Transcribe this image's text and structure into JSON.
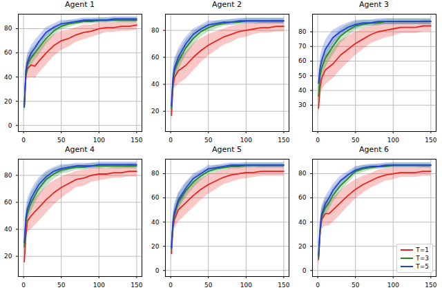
{
  "chart_data": [
    {
      "type": "line",
      "title": "Agent 1",
      "x": [
        1,
        3,
        5,
        10,
        15,
        20,
        30,
        40,
        50,
        60,
        70,
        80,
        90,
        100,
        110,
        120,
        130,
        140,
        150
      ],
      "xlim": [
        -7,
        157
      ],
      "xticks": [
        0,
        50,
        100,
        150
      ],
      "ylim": [
        -5,
        92
      ],
      "yticks": [
        0,
        20,
        40,
        60,
        80
      ],
      "grid": true,
      "series": [
        {
          "color": "#e8221c",
          "values": [
            17,
            40,
            47,
            50,
            49,
            53,
            60,
            66,
            70,
            72,
            75,
            77,
            78,
            80,
            81,
            81,
            82,
            82,
            83
          ],
          "error": [
            6,
            8,
            8,
            10,
            10,
            10,
            10,
            9,
            8,
            7,
            6,
            6,
            5,
            5,
            4,
            4,
            4,
            4,
            4
          ]
        },
        {
          "color": "#1e8c1e",
          "values": [
            16,
            42,
            50,
            56,
            60,
            64,
            72,
            78,
            82,
            84,
            85,
            86,
            86,
            87,
            87,
            87,
            87,
            87,
            87
          ],
          "error": [
            6,
            7,
            7,
            7,
            6,
            6,
            5,
            4,
            3,
            3,
            2,
            2,
            2,
            2,
            2,
            2,
            2,
            2,
            2
          ]
        },
        {
          "color": "#1f3fe0",
          "values": [
            15,
            45,
            52,
            60,
            64,
            69,
            77,
            81,
            84,
            85,
            86,
            87,
            87,
            87,
            87,
            88,
            88,
            88,
            88
          ],
          "error": [
            6,
            7,
            7,
            6,
            6,
            5,
            4,
            3,
            3,
            2,
            2,
            2,
            2,
            2,
            2,
            2,
            2,
            2,
            2
          ]
        }
      ]
    },
    {
      "type": "line",
      "title": "Agent 2",
      "x": [
        1,
        3,
        5,
        10,
        15,
        20,
        30,
        40,
        50,
        60,
        70,
        80,
        90,
        100,
        110,
        120,
        130,
        140,
        150
      ],
      "xlim": [
        -7,
        157
      ],
      "xticks": [
        0,
        50,
        100,
        150
      ],
      "ylim": [
        5,
        92
      ],
      "yticks": [
        20,
        40,
        60,
        80
      ],
      "grid": true,
      "series": [
        {
          "color": "#e8221c",
          "values": [
            17,
            38,
            45,
            50,
            52,
            54,
            60,
            65,
            69,
            72,
            75,
            77,
            79,
            80,
            81,
            82,
            82,
            83,
            83
          ],
          "error": [
            6,
            8,
            8,
            10,
            10,
            10,
            10,
            9,
            8,
            7,
            6,
            6,
            5,
            5,
            4,
            4,
            4,
            4,
            4
          ]
        },
        {
          "color": "#1e8c1e",
          "values": [
            22,
            42,
            50,
            57,
            62,
            67,
            74,
            79,
            82,
            84,
            85,
            86,
            86,
            87,
            87,
            87,
            87,
            87,
            87
          ],
          "error": [
            6,
            7,
            7,
            7,
            6,
            6,
            5,
            4,
            3,
            3,
            2,
            2,
            2,
            2,
            2,
            2,
            2,
            2,
            2
          ]
        },
        {
          "color": "#1f3fe0",
          "values": [
            24,
            44,
            52,
            60,
            65,
            70,
            77,
            81,
            84,
            85,
            86,
            86,
            87,
            87,
            87,
            87,
            87,
            87,
            87
          ],
          "error": [
            6,
            7,
            7,
            6,
            6,
            5,
            4,
            3,
            3,
            2,
            2,
            2,
            2,
            2,
            2,
            2,
            2,
            2,
            2
          ]
        }
      ]
    },
    {
      "type": "line",
      "title": "Agent 3",
      "x": [
        1,
        3,
        5,
        10,
        15,
        20,
        30,
        40,
        50,
        60,
        70,
        80,
        90,
        100,
        110,
        120,
        130,
        140,
        150
      ],
      "xlim": [
        -7,
        157
      ],
      "xticks": [
        0,
        50,
        100,
        150
      ],
      "ylim": [
        12,
        92
      ],
      "yticks": [
        30,
        40,
        50,
        60,
        70,
        80
      ],
      "grid": true,
      "series": [
        {
          "color": "#e8221c",
          "values": [
            28,
            42,
            48,
            54,
            56,
            58,
            64,
            68,
            72,
            75,
            78,
            80,
            81,
            82,
            83,
            83,
            83,
            84,
            84
          ],
          "error": [
            6,
            8,
            8,
            10,
            10,
            10,
            10,
            9,
            8,
            7,
            6,
            6,
            5,
            5,
            4,
            4,
            4,
            4,
            4
          ]
        },
        {
          "color": "#1e8c1e",
          "values": [
            36,
            50,
            55,
            62,
            66,
            70,
            77,
            81,
            84,
            85,
            86,
            86,
            87,
            87,
            87,
            87,
            87,
            87,
            87
          ],
          "error": [
            6,
            7,
            7,
            7,
            6,
            6,
            5,
            4,
            3,
            3,
            2,
            2,
            2,
            2,
            2,
            2,
            2,
            2,
            2
          ]
        },
        {
          "color": "#1f3fe0",
          "values": [
            45,
            55,
            60,
            68,
            72,
            76,
            80,
            83,
            85,
            86,
            86,
            87,
            87,
            87,
            87,
            87,
            87,
            87,
            87
          ],
          "error": [
            6,
            7,
            7,
            6,
            6,
            5,
            4,
            3,
            3,
            2,
            2,
            2,
            2,
            2,
            2,
            2,
            2,
            2,
            2
          ]
        }
      ]
    },
    {
      "type": "line",
      "title": "Agent 4",
      "x": [
        1,
        3,
        5,
        10,
        15,
        20,
        30,
        40,
        50,
        60,
        70,
        80,
        90,
        100,
        110,
        120,
        130,
        140,
        150
      ],
      "xlim": [
        -7,
        157
      ],
      "xticks": [
        0,
        50,
        100,
        150
      ],
      "ylim": [
        5,
        92
      ],
      "yticks": [
        20,
        40,
        60,
        80
      ],
      "grid": true,
      "series": [
        {
          "color": "#e8221c",
          "values": [
            16,
            35,
            46,
            50,
            53,
            56,
            62,
            67,
            71,
            74,
            77,
            78,
            80,
            81,
            81,
            82,
            82,
            83,
            83
          ],
          "error": [
            6,
            8,
            8,
            10,
            10,
            10,
            10,
            9,
            8,
            7,
            6,
            6,
            5,
            5,
            4,
            4,
            4,
            4,
            4
          ]
        },
        {
          "color": "#1e8c1e",
          "values": [
            27,
            45,
            52,
            60,
            65,
            70,
            77,
            81,
            84,
            85,
            86,
            86,
            87,
            87,
            87,
            87,
            87,
            87,
            87
          ],
          "error": [
            6,
            7,
            7,
            7,
            6,
            6,
            5,
            4,
            3,
            3,
            2,
            2,
            2,
            2,
            2,
            2,
            2,
            2,
            2
          ]
        },
        {
          "color": "#1f3fe0",
          "values": [
            30,
            48,
            55,
            63,
            68,
            73,
            79,
            83,
            85,
            86,
            87,
            87,
            87,
            88,
            88,
            88,
            88,
            88,
            88
          ],
          "error": [
            6,
            7,
            7,
            6,
            6,
            5,
            4,
            3,
            3,
            2,
            2,
            2,
            2,
            2,
            2,
            2,
            2,
            2,
            2
          ]
        }
      ]
    },
    {
      "type": "line",
      "title": "Agent 5",
      "x": [
        1,
        3,
        5,
        10,
        15,
        20,
        30,
        40,
        50,
        60,
        70,
        80,
        90,
        100,
        110,
        120,
        130,
        140,
        150
      ],
      "xlim": [
        -7,
        157
      ],
      "xticks": [
        0,
        50,
        100,
        150
      ],
      "ylim": [
        -5,
        92
      ],
      "yticks": [
        0,
        20,
        40,
        60,
        80
      ],
      "grid": true,
      "series": [
        {
          "color": "#e8221c",
          "values": [
            14,
            35,
            42,
            50,
            53,
            56,
            62,
            67,
            71,
            74,
            77,
            79,
            80,
            81,
            81,
            82,
            82,
            82,
            82
          ],
          "error": [
            6,
            8,
            8,
            10,
            10,
            10,
            10,
            9,
            8,
            7,
            6,
            6,
            5,
            5,
            4,
            4,
            4,
            4,
            4
          ]
        },
        {
          "color": "#1e8c1e",
          "values": [
            18,
            38,
            46,
            56,
            61,
            66,
            73,
            78,
            82,
            84,
            85,
            86,
            86,
            87,
            87,
            87,
            87,
            87,
            87
          ],
          "error": [
            6,
            7,
            7,
            7,
            6,
            6,
            5,
            4,
            3,
            3,
            2,
            2,
            2,
            2,
            2,
            2,
            2,
            2,
            2
          ]
        },
        {
          "color": "#1f3fe0",
          "values": [
            19,
            40,
            48,
            58,
            63,
            68,
            76,
            80,
            84,
            85,
            86,
            87,
            87,
            87,
            87,
            87,
            87,
            87,
            87
          ],
          "error": [
            6,
            7,
            7,
            6,
            6,
            5,
            4,
            3,
            3,
            2,
            2,
            2,
            2,
            2,
            2,
            2,
            2,
            2,
            2
          ]
        }
      ]
    },
    {
      "type": "line",
      "title": "Agent 6",
      "x": [
        1,
        3,
        5,
        10,
        15,
        20,
        30,
        40,
        50,
        60,
        70,
        80,
        90,
        100,
        110,
        120,
        130,
        140,
        150
      ],
      "xlim": [
        -7,
        157
      ],
      "xticks": [
        0,
        50,
        100,
        150
      ],
      "ylim": [
        -5,
        92
      ],
      "yticks": [
        0,
        20,
        40,
        60,
        80
      ],
      "grid": true,
      "legend": "lower right",
      "series": [
        {
          "name": "T=1",
          "color": "#e8221c",
          "values": [
            9,
            30,
            42,
            47,
            47,
            50,
            56,
            62,
            67,
            71,
            74,
            77,
            79,
            80,
            81,
            81,
            81,
            82,
            82
          ],
          "error": [
            6,
            8,
            8,
            10,
            10,
            10,
            10,
            9,
            8,
            7,
            6,
            6,
            5,
            5,
            4,
            4,
            4,
            4,
            4
          ]
        },
        {
          "name": "T=3",
          "color": "#1e8c1e",
          "values": [
            10,
            32,
            44,
            52,
            56,
            62,
            70,
            76,
            82,
            84,
            85,
            86,
            86,
            87,
            87,
            87,
            87,
            87,
            87
          ],
          "error": [
            6,
            7,
            7,
            7,
            6,
            6,
            5,
            4,
            3,
            3,
            2,
            2,
            2,
            2,
            2,
            2,
            2,
            2,
            2
          ]
        },
        {
          "name": "T=5",
          "color": "#1f3fe0",
          "values": [
            12,
            34,
            46,
            55,
            60,
            66,
            74,
            79,
            83,
            85,
            86,
            86,
            87,
            87,
            87,
            87,
            87,
            87,
            87
          ],
          "error": [
            6,
            7,
            7,
            6,
            6,
            5,
            4,
            3,
            3,
            2,
            2,
            2,
            2,
            2,
            2,
            2,
            2,
            2,
            2
          ]
        }
      ]
    }
  ]
}
